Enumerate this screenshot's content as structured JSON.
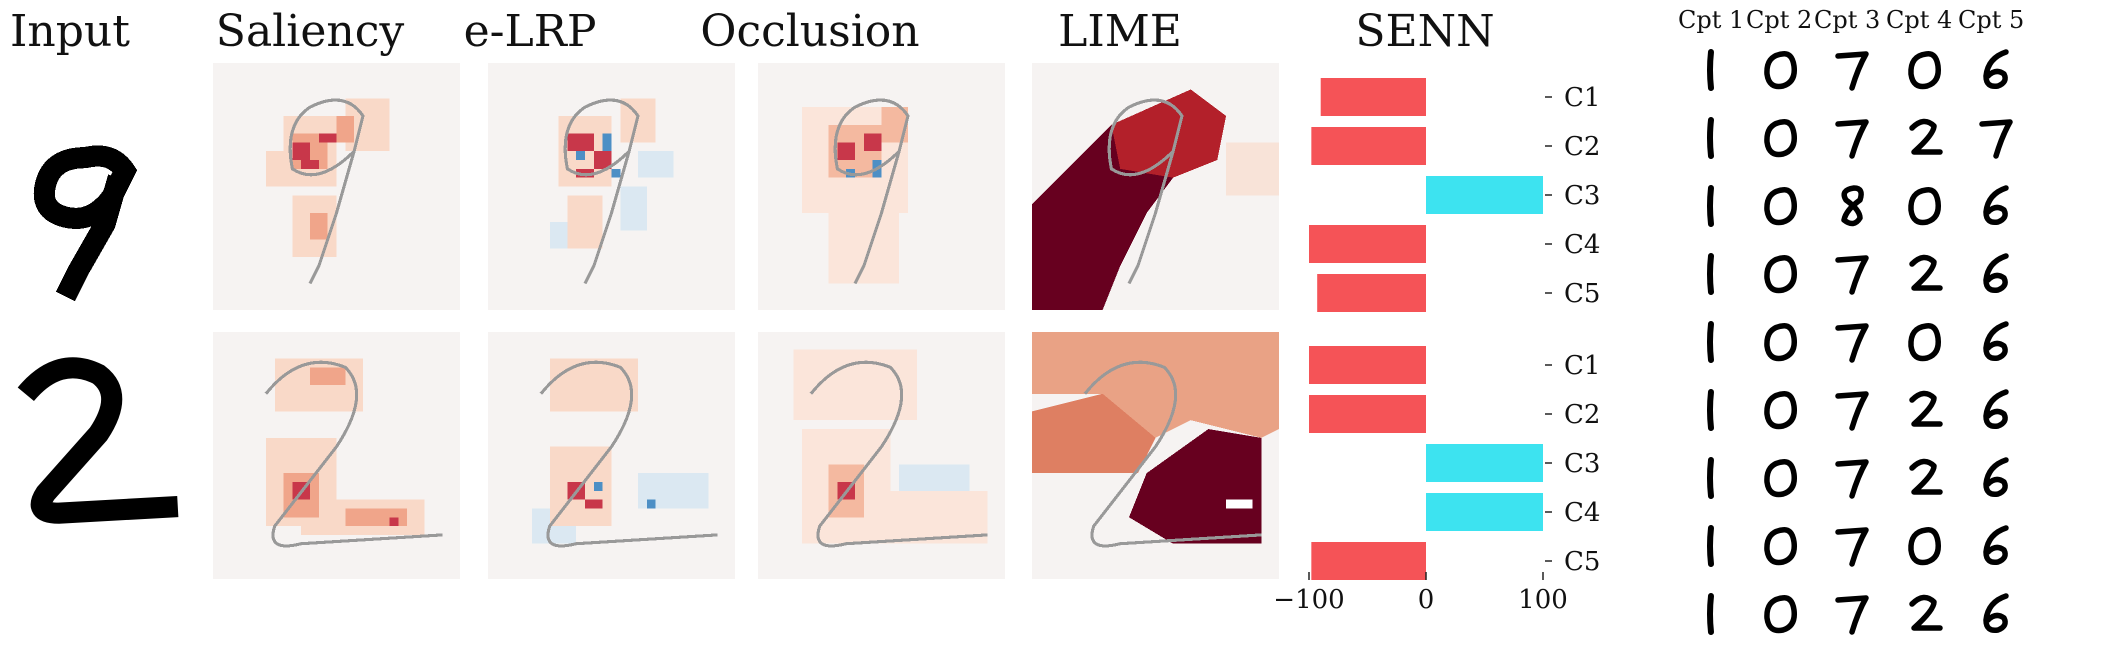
{
  "column_titles": {
    "input": "Input",
    "saliency": "Saliency",
    "elrp": "e-LRP",
    "occlusion": "Occlusion",
    "lime": "LIME",
    "senn": "SENN"
  },
  "rows": [
    {
      "digit": "9"
    },
    {
      "digit": "2"
    }
  ],
  "colors": {
    "negative_bar": "#f55357",
    "positive_bar": "#3de3f0",
    "attr_red": "#b2182b",
    "attr_blue": "#2166ac",
    "lime_dark": "#67001f",
    "lime_mid": "#b3202a",
    "lime_light": "#f3cfbd"
  },
  "chart_data": [
    {
      "type": "bar",
      "orientation": "horizontal",
      "categories": [
        "C1",
        "C2",
        "C3",
        "C4",
        "C5"
      ],
      "values": [
        -90,
        -98,
        100,
        -100,
        -93
      ],
      "xlim": [
        -100,
        100
      ],
      "xticks": [
        "−100",
        "0",
        "100"
      ]
    },
    {
      "type": "bar",
      "orientation": "horizontal",
      "categories": [
        "C1",
        "C2",
        "C3",
        "C4",
        "C5"
      ],
      "values": [
        -100,
        -100,
        100,
        100,
        -98
      ],
      "xlim": [
        -100,
        100
      ],
      "xticks": [
        "−100",
        "0",
        "100"
      ]
    }
  ],
  "concepts": {
    "headers": [
      "Cpt 1",
      "Cpt 2",
      "Cpt 3",
      "Cpt 4",
      "Cpt 5"
    ],
    "grid": [
      [
        "1",
        "0",
        "7",
        "0",
        "6"
      ],
      [
        "1",
        "0",
        "7",
        "2",
        "7"
      ],
      [
        "1",
        "0",
        "8",
        "0",
        "6"
      ],
      [
        "1",
        "0",
        "7",
        "2",
        "6"
      ],
      [
        "1",
        "0",
        "7",
        "0",
        "6"
      ],
      [
        "1",
        "0",
        "7",
        "2",
        "6"
      ],
      [
        "1",
        "0",
        "7",
        "2",
        "6"
      ],
      [
        "1",
        "0",
        "7",
        "0",
        "6"
      ],
      [
        "1",
        "0",
        "7",
        "2",
        "6"
      ]
    ]
  }
}
